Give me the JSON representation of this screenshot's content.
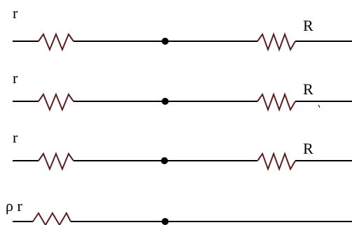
{
  "colors": {
    "wire": "#000000",
    "resistor": "#5a1e1e",
    "node": "#000000",
    "background": "#ffffff"
  },
  "branches": [
    {
      "left_label": "r",
      "has_right_resistor": true,
      "right_label": "R"
    },
    {
      "left_label": "r",
      "has_right_resistor": true,
      "right_label": "R"
    },
    {
      "left_label": "r",
      "has_right_resistor": true,
      "right_label": "R"
    },
    {
      "left_label": "ρ r",
      "has_right_resistor": false,
      "right_label": ""
    }
  ]
}
